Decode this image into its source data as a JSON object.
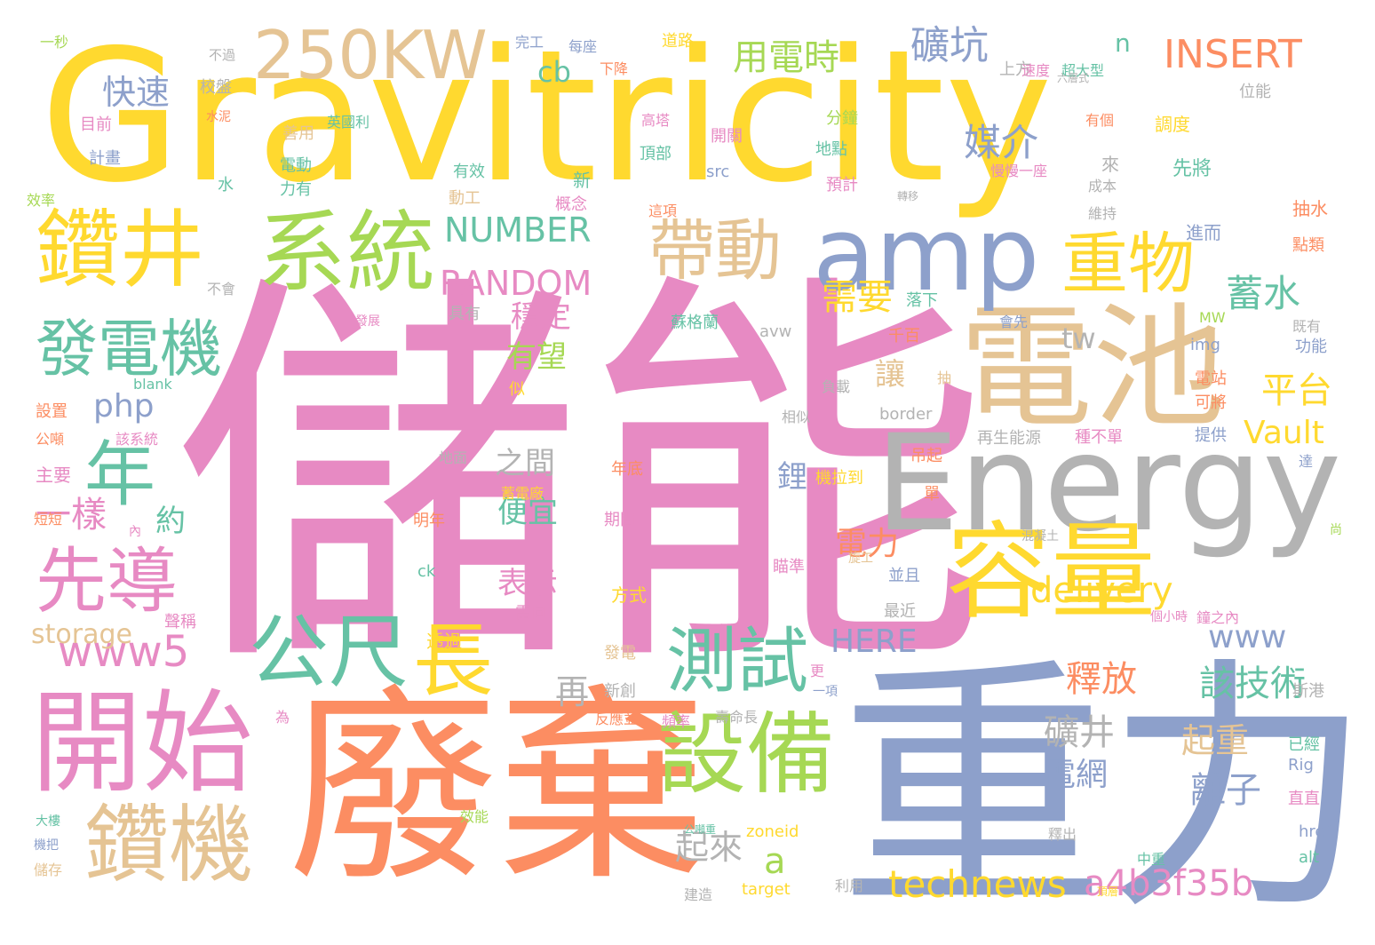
{
  "palette": {
    "yellow": "#FFD92F",
    "pink": "#E78AC3",
    "blue": "#8DA0CB",
    "orange": "#FC8D62",
    "green": "#66C2A5",
    "lime": "#A6D854",
    "tan": "#E5C494",
    "gray": "#B3B3B3"
  },
  "words": [
    {
      "text": "Gravitricity",
      "color": "yellow"
    },
    {
      "text": "儲能",
      "color": "pink"
    },
    {
      "text": "重力",
      "color": "blue"
    },
    {
      "text": "廢棄",
      "color": "orange"
    },
    {
      "text": "Energy",
      "color": "gray"
    },
    {
      "text": "電池",
      "color": "tan"
    },
    {
      "text": "amp",
      "color": "blue"
    },
    {
      "text": "開始",
      "color": "pink"
    },
    {
      "text": "容量",
      "color": "yellow"
    },
    {
      "text": "250KW",
      "color": "tan"
    },
    {
      "text": "系統",
      "color": "lime"
    },
    {
      "text": "鑽井",
      "color": "yellow"
    },
    {
      "text": "設備",
      "color": "lime"
    },
    {
      "text": "鑽機",
      "color": "tan"
    },
    {
      "text": "帶動",
      "color": "tan"
    },
    {
      "text": "重物",
      "color": "yellow"
    },
    {
      "text": "公尺",
      "color": "green"
    },
    {
      "text": "長",
      "color": "yellow"
    },
    {
      "text": "先導",
      "color": "pink"
    },
    {
      "text": "測試",
      "color": "green"
    },
    {
      "text": "發電機",
      "color": "green"
    },
    {
      "text": "年",
      "color": "green"
    },
    {
      "text": "www5",
      "color": "pink"
    },
    {
      "text": "用電時",
      "color": "lime"
    },
    {
      "text": "礦坑",
      "color": "blue"
    },
    {
      "text": "INSERT",
      "color": "orange"
    },
    {
      "text": "technews",
      "color": "yellow"
    },
    {
      "text": "a4b3f35b",
      "color": "pink"
    },
    {
      "text": "NUMBER",
      "color": "green"
    },
    {
      "text": "RANDOM",
      "color": "pink"
    },
    {
      "text": "delivery",
      "color": "yellow"
    },
    {
      "text": "一樣",
      "color": "pink"
    },
    {
      "text": "媒介",
      "color": "blue"
    },
    {
      "text": "需要",
      "color": "yellow"
    },
    {
      "text": "蓄水",
      "color": "green"
    },
    {
      "text": "平台",
      "color": "yellow"
    },
    {
      "text": "Vault",
      "color": "yellow"
    },
    {
      "text": "釋放",
      "color": "orange"
    },
    {
      "text": "該技術",
      "color": "green"
    },
    {
      "text": "電網",
      "color": "blue"
    },
    {
      "text": "礦井",
      "color": "gray"
    },
    {
      "text": "離子",
      "color": "blue"
    },
    {
      "text": "HERE",
      "color": "blue"
    },
    {
      "text": "www",
      "color": "blue"
    },
    {
      "text": "快速",
      "color": "blue"
    },
    {
      "text": "php",
      "color": "blue"
    },
    {
      "text": "a",
      "color": "lime"
    },
    {
      "text": "起重",
      "color": "tan"
    },
    {
      "text": "電力",
      "color": "orange"
    },
    {
      "text": "穩定",
      "color": "pink"
    },
    {
      "text": "有望",
      "color": "lime"
    },
    {
      "text": "便宜",
      "color": "green"
    },
    {
      "text": "表示",
      "color": "pink"
    },
    {
      "text": "再",
      "color": "gray"
    },
    {
      "text": "起來",
      "color": "gray"
    },
    {
      "text": "cb",
      "color": "green"
    },
    {
      "text": "n",
      "color": "green"
    },
    {
      "text": "tw",
      "color": "gray"
    },
    {
      "text": "storage",
      "color": "tan"
    },
    {
      "text": "讓",
      "color": "tan"
    },
    {
      "text": "鋰",
      "color": "blue"
    },
    {
      "text": "約",
      "color": "green"
    },
    {
      "text": "之間",
      "color": "gray"
    },
    {
      "text": "一秒",
      "color": "lime"
    },
    {
      "text": "不過",
      "color": "gray"
    },
    {
      "text": "完工",
      "color": "blue"
    },
    {
      "text": "每座",
      "color": "blue"
    },
    {
      "text": "道路",
      "color": "yellow"
    },
    {
      "text": "上方",
      "color": "gray"
    },
    {
      "text": "下降",
      "color": "orange"
    },
    {
      "text": "速度",
      "color": "pink"
    },
    {
      "text": "超大型",
      "color": "green"
    },
    {
      "text": "六層式",
      "color": "gray"
    },
    {
      "text": "位能",
      "color": "gray"
    },
    {
      "text": "校盤",
      "color": "gray"
    },
    {
      "text": "目前",
      "color": "pink"
    },
    {
      "text": "水泥",
      "color": "orange"
    },
    {
      "text": "英國利",
      "color": "green"
    },
    {
      "text": "高塔",
      "color": "pink"
    },
    {
      "text": "分鐘",
      "color": "lime"
    },
    {
      "text": "有個",
      "color": "orange"
    },
    {
      "text": "調度",
      "color": "yellow"
    },
    {
      "text": "計畫",
      "color": "blue"
    },
    {
      "text": "善用",
      "color": "tan"
    },
    {
      "text": "電動",
      "color": "green"
    },
    {
      "text": "開關",
      "color": "pink"
    },
    {
      "text": "地點",
      "color": "green"
    },
    {
      "text": "頂部",
      "color": "green"
    },
    {
      "text": "水",
      "color": "green"
    },
    {
      "text": "力有",
      "color": "green"
    },
    {
      "text": "有效",
      "color": "green"
    },
    {
      "text": "新",
      "color": "green"
    },
    {
      "text": "預計",
      "color": "pink"
    },
    {
      "text": "來",
      "color": "gray"
    },
    {
      "text": "先將",
      "color": "green"
    },
    {
      "text": "慢慢一座",
      "color": "pink"
    },
    {
      "text": "成本",
      "color": "gray"
    },
    {
      "text": "效率",
      "color": "lime"
    },
    {
      "text": "動工",
      "color": "tan"
    },
    {
      "text": "概念",
      "color": "pink"
    },
    {
      "text": "這項",
      "color": "orange"
    },
    {
      "text": "轉移",
      "color": "gray"
    },
    {
      "text": "維持",
      "color": "gray"
    },
    {
      "text": "抽水",
      "color": "orange"
    },
    {
      "text": "進而",
      "color": "blue"
    },
    {
      "text": "點類",
      "color": "orange"
    },
    {
      "text": "src",
      "color": "blue"
    },
    {
      "text": "不會",
      "color": "gray"
    },
    {
      "text": "具有",
      "color": "gray"
    },
    {
      "text": "會先",
      "color": "blue"
    },
    {
      "text": "落下",
      "color": "green"
    },
    {
      "text": "發展",
      "color": "pink"
    },
    {
      "text": "蘇格蘭",
      "color": "green"
    },
    {
      "text": "avw",
      "color": "gray"
    },
    {
      "text": "千百",
      "color": "orange"
    },
    {
      "text": "img",
      "color": "blue"
    },
    {
      "text": "MW",
      "color": "lime"
    },
    {
      "text": "既有",
      "color": "gray"
    },
    {
      "text": "功能",
      "color": "blue"
    },
    {
      "text": "blank",
      "color": "green"
    },
    {
      "text": "抽",
      "color": "tan"
    },
    {
      "text": "負載",
      "color": "gray"
    },
    {
      "text": "電站",
      "color": "orange"
    },
    {
      "text": "可將",
      "color": "orange"
    },
    {
      "text": "設置",
      "color": "orange"
    },
    {
      "text": "相似",
      "color": "gray"
    },
    {
      "text": "border",
      "color": "gray"
    },
    {
      "text": "似",
      "color": "yellow"
    },
    {
      "text": "公噸",
      "color": "orange"
    },
    {
      "text": "該系統",
      "color": "pink"
    },
    {
      "text": "再生能源",
      "color": "gray"
    },
    {
      "text": "種不單",
      "color": "pink"
    },
    {
      "text": "提供",
      "color": "blue"
    },
    {
      "text": "主要",
      "color": "pink"
    },
    {
      "text": "地面",
      "color": "gray"
    },
    {
      "text": "吊起",
      "color": "orange"
    },
    {
      "text": "達",
      "color": "blue"
    },
    {
      "text": "機拉到",
      "color": "yellow"
    },
    {
      "text": "年底",
      "color": "orange"
    },
    {
      "text": "蓄電廠",
      "color": "yellow"
    },
    {
      "text": "單",
      "color": "orange"
    },
    {
      "text": "短短",
      "color": "orange"
    },
    {
      "text": "內",
      "color": "pink"
    },
    {
      "text": "明年",
      "color": "orange"
    },
    {
      "text": "期間",
      "color": "pink"
    },
    {
      "text": "混凝土",
      "color": "gray"
    },
    {
      "text": "尚",
      "color": "lime"
    },
    {
      "text": "瞄準",
      "color": "pink"
    },
    {
      "text": "旋工",
      "color": "tan"
    },
    {
      "text": "並且",
      "color": "blue"
    },
    {
      "text": "方式",
      "color": "yellow"
    },
    {
      "text": "最近",
      "color": "gray"
    },
    {
      "text": "ck",
      "color": "green"
    },
    {
      "text": "雷同",
      "color": "pink"
    },
    {
      "text": "聲稱",
      "color": "pink"
    },
    {
      "text": "個小時",
      "color": "pink"
    },
    {
      "text": "鐘之內",
      "color": "pink"
    },
    {
      "text": "透過",
      "color": "yellow"
    },
    {
      "text": "發電",
      "color": "tan"
    },
    {
      "text": "更",
      "color": "pink"
    },
    {
      "text": "一項",
      "color": "blue"
    },
    {
      "text": "為",
      "color": "pink"
    },
    {
      "text": "新創",
      "color": "gray"
    },
    {
      "text": "反應並",
      "color": "orange"
    },
    {
      "text": "頻率",
      "color": "pink"
    },
    {
      "text": "壽命長",
      "color": "gray"
    },
    {
      "text": "斯港",
      "color": "gray"
    },
    {
      "text": "已經",
      "color": "green"
    },
    {
      "text": "Rig",
      "color": "blue"
    },
    {
      "text": "直直",
      "color": "pink"
    },
    {
      "text": "大樓",
      "color": "green"
    },
    {
      "text": "機把",
      "color": "blue"
    },
    {
      "text": "效能",
      "color": "lime"
    },
    {
      "text": "公噸重",
      "color": "green"
    },
    {
      "text": "zoneid",
      "color": "yellow"
    },
    {
      "text": "釋出",
      "color": "gray"
    },
    {
      "text": "中重",
      "color": "green"
    },
    {
      "text": "href",
      "color": "blue"
    },
    {
      "text": "alt",
      "color": "green"
    },
    {
      "text": "儲存",
      "color": "tan"
    },
    {
      "text": "建造",
      "color": "gray"
    },
    {
      "text": "target",
      "color": "yellow"
    },
    {
      "text": "利用",
      "color": "gray"
    },
    {
      "text": "頂層",
      "color": "yellow"
    }
  ]
}
